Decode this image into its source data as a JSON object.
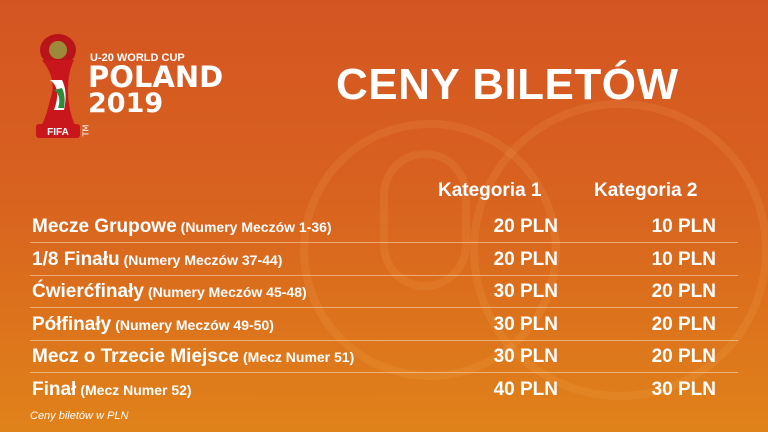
{
  "logo": {
    "line1": "U-20 WORLD CUP",
    "line2": "POLAND",
    "line3": "2019",
    "badge": "FIFA",
    "tm": "TM"
  },
  "title": "CENY BILETÓW",
  "columns": [
    "Kategoria 1",
    "Kategoria 2"
  ],
  "rows": [
    {
      "name": "Mecze Grupowe",
      "sub": "(Numery Meczów 1-36)",
      "cat1": "20 PLN",
      "cat2": "10 PLN"
    },
    {
      "name": "1/8 Finału",
      "sub": "(Numery Meczów 37-44)",
      "cat1": "20 PLN",
      "cat2": "10 PLN"
    },
    {
      "name": "Ćwierćfinały",
      "sub": "(Numery Meczów 45-48)",
      "cat1": "30 PLN",
      "cat2": "20 PLN"
    },
    {
      "name": "Półfinały",
      "sub": "(Numery Meczów 49-50)",
      "cat1": "30 PLN",
      "cat2": "20 PLN"
    },
    {
      "name": "Mecz o Trzecie Miejsce",
      "sub": "(Mecz Numer 51)",
      "cat1": "30 PLN",
      "cat2": "20 PLN"
    },
    {
      "name": "Finał",
      "sub": "(Mecz Numer 52)",
      "cat1": "40 PLN",
      "cat2": "30 PLN"
    }
  ],
  "note": "Ceny biletów w PLN",
  "colors": {
    "background_top": "#d45522",
    "background_bottom": "#e0821a",
    "text": "#ffffff"
  }
}
